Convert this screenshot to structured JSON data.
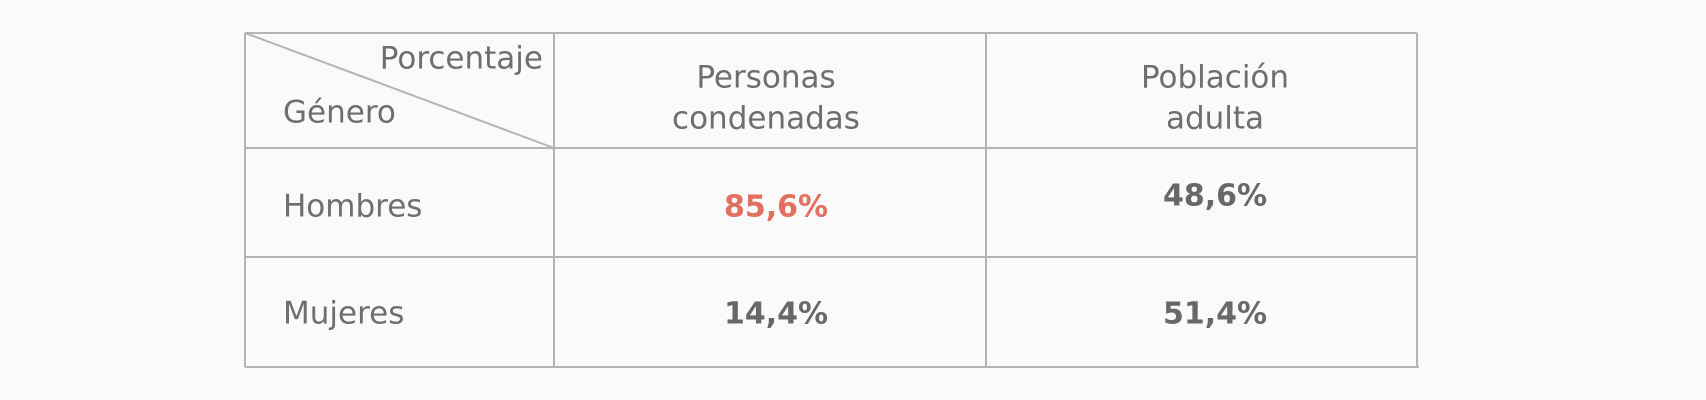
{
  "table": {
    "corner": {
      "top": "Porcentaje",
      "bottom": "Género"
    },
    "columns": [
      [
        "Personas",
        "condenadas"
      ],
      [
        "Población",
        "adulta"
      ]
    ],
    "rows": [
      {
        "label": "Hombres",
        "cells": [
          "85,6%",
          "48,6%"
        ]
      },
      {
        "label": "Mujeres",
        "cells": [
          "14,4%",
          "51,4%"
        ]
      }
    ]
  }
}
